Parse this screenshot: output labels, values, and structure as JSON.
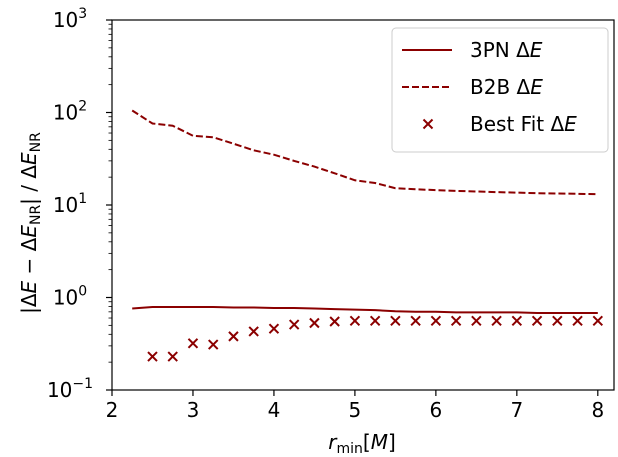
{
  "chart_data": {
    "type": "line",
    "title": "",
    "xlabel": "r_min[M]",
    "ylabel": "|ΔE − ΔE_NR| / ΔE_NR",
    "xlim": [
      2.0,
      8.2
    ],
    "ylim": [
      0.1,
      1000
    ],
    "yscale": "log",
    "grid": false,
    "legend_position": "top-right",
    "x_ticks": [
      2,
      3,
      4,
      5,
      6,
      7,
      8
    ],
    "y_ticks": [
      {
        "value": 0.1,
        "exp": "−1"
      },
      {
        "value": 1,
        "exp": "0"
      },
      {
        "value": 10,
        "exp": "1"
      },
      {
        "value": 100,
        "exp": "2"
      },
      {
        "value": 1000,
        "exp": "3"
      }
    ],
    "series": [
      {
        "name": "3PN ΔE",
        "style": "solid",
        "color": "#8b0000",
        "x": [
          2.25,
          2.5,
          2.75,
          3.0,
          3.25,
          3.5,
          3.75,
          4.0,
          4.25,
          4.5,
          4.75,
          5.0,
          5.25,
          5.5,
          5.75,
          6.0,
          6.25,
          6.5,
          6.75,
          7.0,
          7.25,
          7.5,
          7.75,
          8.0
        ],
        "y": [
          0.76,
          0.79,
          0.79,
          0.79,
          0.79,
          0.78,
          0.78,
          0.77,
          0.77,
          0.76,
          0.75,
          0.74,
          0.73,
          0.71,
          0.7,
          0.7,
          0.69,
          0.69,
          0.69,
          0.69,
          0.68,
          0.68,
          0.68,
          0.68
        ]
      },
      {
        "name": "B2B ΔE",
        "style": "dashed",
        "color": "#8b0000",
        "x": [
          2.25,
          2.5,
          2.75,
          3.0,
          3.25,
          3.5,
          3.75,
          4.0,
          4.25,
          4.5,
          4.75,
          5.0,
          5.25,
          5.5,
          5.75,
          6.0,
          6.25,
          6.5,
          6.75,
          7.0,
          7.25,
          7.5,
          7.75,
          8.0
        ],
        "y": [
          105,
          76,
          72,
          56,
          54,
          46,
          39,
          35,
          30,
          26,
          22,
          18.5,
          17.3,
          15.2,
          14.8,
          14.5,
          14.2,
          14,
          13.8,
          13.6,
          13.4,
          13.3,
          13.2,
          13.1
        ]
      },
      {
        "name": "Best Fit ΔE",
        "style": "x-marker",
        "color": "#8b0000",
        "x": [
          2.5,
          2.75,
          3.0,
          3.25,
          3.5,
          3.75,
          4.0,
          4.25,
          4.5,
          4.75,
          5.0,
          5.25,
          5.5,
          5.75,
          6.0,
          6.25,
          6.5,
          6.75,
          7.0,
          7.25,
          7.5,
          7.75,
          8.0
        ],
        "y": [
          0.23,
          0.23,
          0.32,
          0.31,
          0.38,
          0.43,
          0.46,
          0.51,
          0.53,
          0.55,
          0.56,
          0.56,
          0.56,
          0.56,
          0.56,
          0.56,
          0.56,
          0.56,
          0.56,
          0.56,
          0.56,
          0.56,
          0.56
        ]
      }
    ]
  }
}
